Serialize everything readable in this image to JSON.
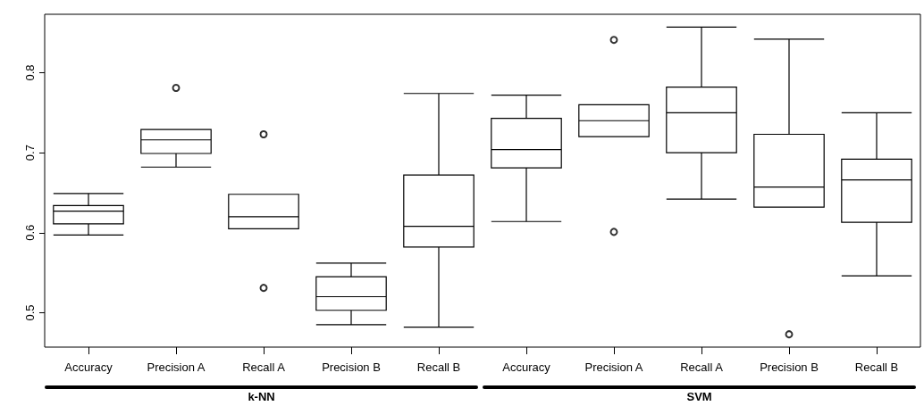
{
  "chart_data": {
    "type": "box",
    "categories": [
      "Accuracy",
      "Precision A",
      "Recall A",
      "Precision B",
      "Recall B",
      "Accuracy",
      "Precision A",
      "Recall A",
      "Precision B",
      "Recall B"
    ],
    "boxes": [
      {
        "low": 0.597,
        "q1": 0.611,
        "median": 0.627,
        "q3": 0.634,
        "high": 0.649
      },
      {
        "low": 0.682,
        "q1": 0.699,
        "median": 0.716,
        "q3": 0.729,
        "high": 0.729,
        "outliers": [
          0.781
        ]
      },
      {
        "low": 0.605,
        "q1": 0.605,
        "median": 0.62,
        "q3": 0.648,
        "high": 0.648,
        "outliers": [
          0.723,
          0.531
        ]
      },
      {
        "low": 0.485,
        "q1": 0.503,
        "median": 0.52,
        "q3": 0.545,
        "high": 0.562
      },
      {
        "low": 0.482,
        "q1": 0.582,
        "median": 0.608,
        "q3": 0.672,
        "high": 0.774
      },
      {
        "low": 0.614,
        "q1": 0.681,
        "median": 0.704,
        "q3": 0.743,
        "high": 0.772
      },
      {
        "low": 0.72,
        "q1": 0.72,
        "median": 0.74,
        "q3": 0.76,
        "high": 0.76,
        "outliers": [
          0.841,
          0.601
        ]
      },
      {
        "low": 0.642,
        "q1": 0.7,
        "median": 0.75,
        "q3": 0.782,
        "high": 0.857
      },
      {
        "low": 0.632,
        "q1": 0.632,
        "median": 0.657,
        "q3": 0.723,
        "high": 0.842,
        "outliers": [
          0.473
        ]
      },
      {
        "low": 0.546,
        "q1": 0.613,
        "median": 0.666,
        "q3": 0.692,
        "high": 0.75
      }
    ],
    "color": "#000000",
    "ylim": [
      0.457,
      0.873
    ],
    "yticks": [
      0.5,
      0.6,
      0.7,
      0.8
    ],
    "grid": false,
    "marker": "circle",
    "annotations": [
      "k-NN",
      "SVM"
    ]
  }
}
